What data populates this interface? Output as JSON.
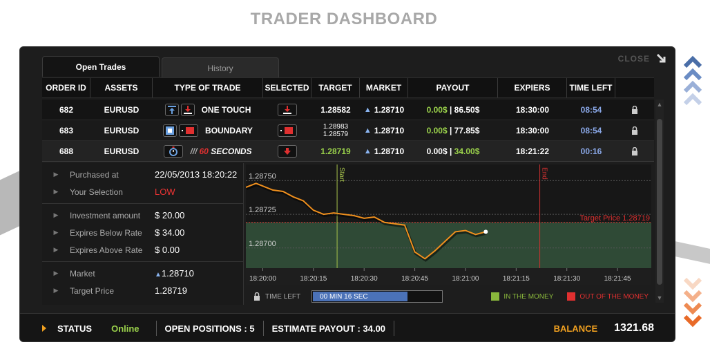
{
  "page": {
    "title": "TRADER DASHBOARD"
  },
  "window": {
    "close_label": "CLOSE"
  },
  "tabs": [
    {
      "label": "Open Trades",
      "active": true
    },
    {
      "label": "History",
      "active": false
    }
  ],
  "table": {
    "headers": [
      "ORDER ID",
      "ASSETS",
      "TYPE OF TRADE",
      "SELECTED",
      "TARGET",
      "MARKET",
      "PAYOUT",
      "EXPIERS",
      "TIME LEFT"
    ],
    "rows": [
      {
        "order_id": "682",
        "asset": "EURUSD",
        "type": "ONE TOUCH",
        "target": "1.28582",
        "target2": "",
        "market": "1.28710",
        "payout_left": "0.00",
        "payout_right": "86.50",
        "currency": "$",
        "expires": "18:30:00",
        "time_left": "08:54"
      },
      {
        "order_id": "683",
        "asset": "EURUSD",
        "type": "BOUNDARY",
        "target": "1.28983",
        "target2": "1.28579",
        "market": "1.28710",
        "payout_left": "0.00",
        "payout_right": "77.85",
        "currency": "$",
        "expires": "18:30:00",
        "time_left": "08:54"
      },
      {
        "order_id": "688",
        "asset": "EURUSD",
        "type_prefix": "60",
        "type": "SECONDS",
        "target": "1.28719",
        "target2": "",
        "market": "1.28710",
        "payout_left": "0.00",
        "payout_right": "34.00",
        "currency": "$",
        "expires": "18:21:22",
        "time_left": "00:16"
      }
    ]
  },
  "details": {
    "purchased_at_label": "Purchased at",
    "purchased_at": "22/05/2013 18:20:22",
    "selection_label": "Your Selection",
    "selection": "LOW",
    "investment_label": "Investment amount",
    "investment": "$ 20.00",
    "below_label": "Expires Below Rate",
    "below": "$ 34.00",
    "above_label": "Expires Above Rate",
    "above": "$ 0.00",
    "market_label": "Market",
    "market": "1.28710",
    "target_label": "Target Price",
    "target": "1.28719"
  },
  "chart_data": {
    "type": "line",
    "y_ticks": [
      "1.28750",
      "1.28725",
      "1.28700"
    ],
    "ylim": [
      1.28685,
      1.28762
    ],
    "x_ticks": [
      "18:20:00",
      "18:20:15",
      "18:20:30",
      "18:20:45",
      "18:21:00",
      "18:21:15",
      "18:21:30",
      "18:21:45"
    ],
    "start_label": "Start",
    "start_time": "18:20:22",
    "end_label": "End",
    "end_time": "18:21:22",
    "target_label": "Target Price 1.28719",
    "target_value": 1.28719,
    "series": [
      {
        "x": [
          "18:19:55",
          "18:19:58",
          "18:20:00",
          "18:20:03",
          "18:20:06",
          "18:20:09",
          "18:20:12",
          "18:20:15",
          "18:20:18",
          "18:20:21",
          "18:20:24",
          "18:20:27",
          "18:20:30",
          "18:20:33",
          "18:20:36",
          "18:20:39",
          "18:20:42",
          "18:20:45",
          "18:20:48",
          "18:20:51",
          "18:20:54",
          "18:20:57",
          "18:21:00",
          "18:21:03",
          "18:21:06"
        ],
        "values": [
          1.28745,
          1.28748,
          1.28746,
          1.28743,
          1.28742,
          1.28738,
          1.28735,
          1.28728,
          1.28725,
          1.28726,
          1.28725,
          1.28724,
          1.28722,
          1.28723,
          1.28719,
          1.28718,
          1.28717,
          1.28697,
          1.28692,
          1.28698,
          1.28705,
          1.28712,
          1.28713,
          1.2871,
          1.28712
        ]
      }
    ],
    "colors": {
      "line": "#f0901e",
      "in_money": "#2f4a36",
      "target": "#e03030",
      "start": "#a6c24c",
      "end": "#d03030"
    }
  },
  "time_left_bar": {
    "label": "TIME LEFT",
    "progress_text": "00 MIN 16 SEC",
    "progress": 0.73,
    "in_money_label": "IN THE MONEY",
    "out_money_label": "OUT OF THE MONEY",
    "in_money_color": "#8ab83c",
    "out_money_color": "#e03030"
  },
  "status_bar": {
    "status_label": "STATUS",
    "status_value": "Online",
    "open_positions": "OPEN POSITIONS : 5",
    "estimate_payout": "ESTIMATE PAYOUT : 34.00",
    "balance_label": "BALANCE",
    "balance_value": "1321.68"
  }
}
